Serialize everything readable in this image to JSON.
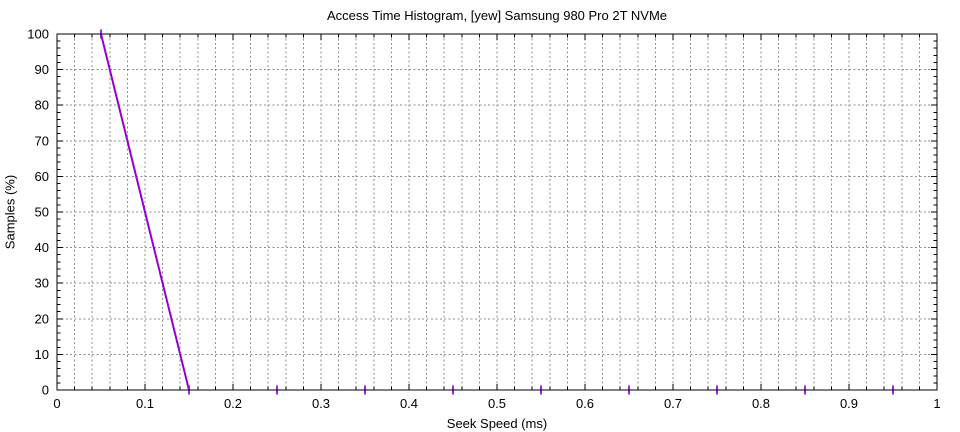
{
  "chart_data": {
    "type": "line",
    "title": "Access Time Histogram, [yew] Samsung 980 Pro 2T NVMe",
    "xlabel": "Seek Speed (ms)",
    "ylabel": "Samples (%)",
    "xlim": [
      0,
      1
    ],
    "ylim": [
      0,
      100
    ],
    "x_tick_labels": [
      "0",
      "0.1",
      "0.2",
      "0.3",
      "0.4",
      "0.5",
      "0.6",
      "0.7",
      "0.8",
      "0.9",
      "1"
    ],
    "x_tick_values": [
      0,
      0.1,
      0.2,
      0.3,
      0.4,
      0.5,
      0.6,
      0.7,
      0.8,
      0.9,
      1
    ],
    "y_tick_labels": [
      "0",
      "10",
      "20",
      "30",
      "40",
      "50",
      "60",
      "70",
      "80",
      "90",
      "100"
    ],
    "y_tick_values": [
      0,
      10,
      20,
      30,
      40,
      50,
      60,
      70,
      80,
      90,
      100
    ],
    "x_minor_step": 0.02,
    "y_minor_step": 2,
    "grid": true,
    "legend": "none",
    "colors": {
      "series": "#9400d3",
      "grid": "#8f8f8f",
      "axis": "#000000",
      "background": "#ffffff"
    },
    "series": [
      {
        "name": "samples",
        "marker": "plus",
        "points": [
          [
            0.05,
            100
          ],
          [
            0.15,
            0
          ],
          [
            0.25,
            0
          ],
          [
            0.35,
            0
          ],
          [
            0.45,
            0
          ],
          [
            0.55,
            0
          ],
          [
            0.65,
            0
          ],
          [
            0.75,
            0
          ],
          [
            0.85,
            0
          ],
          [
            0.95,
            0
          ]
        ]
      }
    ]
  }
}
